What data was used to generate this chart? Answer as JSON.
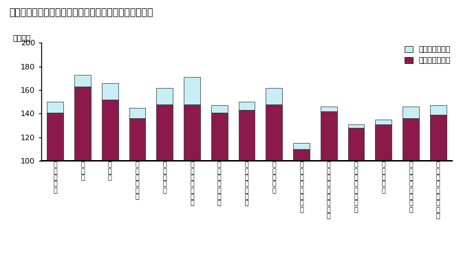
{
  "title": "図２－３　産業別１人平均労働時間数（規模５人以上）",
  "ylabel": "（時間）",
  "categories": [
    "調\n査\n産\n業\n計",
    "建\n設\n業",
    "製\n造\n業",
    "電\n気\n・\nガ\nス\n業",
    "情\n報\n通\n信\n業",
    "運\n輸\n業\n・\n郵\n便\n業",
    "卸\n売\n業\n・\n小\n売\n業",
    "金\n融\n業\n・\n保\n険\n業",
    "学\n術\n研\n究\n等",
    "宿\n泊\n業\n・\n飲\n食\n業\n等",
    "生\n活\n関\n連\nサ\nー\nビ\nス\n等",
    "教\n育\n・\n学\n習\n支\n援\n業",
    "医\n療\n・\n福\n祉",
    "複\n合\nサ\nー\nビ\nス\n事\n業",
    "そ\nの\n他\nの\nサ\nー\nビ\nス\n業"
  ],
  "scheduled_hours": [
    141,
    163,
    152,
    136,
    148,
    148,
    141,
    143,
    148,
    110,
    142,
    128,
    131,
    136,
    139
  ],
  "overtime_hours": [
    9,
    10,
    14,
    9,
    14,
    23,
    6,
    7,
    14,
    5,
    4,
    3,
    4,
    10,
    8
  ],
  "bar_color": "#8B1A4A",
  "overtime_color": "#C8EEF5",
  "ylim_min": 100,
  "ylim_max": 200,
  "yticks": [
    100,
    120,
    140,
    160,
    180,
    200
  ],
  "legend_labels": [
    "所定外労働時間",
    "所定内労働時間"
  ],
  "legend_colors": [
    "#C8EEF5",
    "#8B1A4A"
  ],
  "bar_width": 0.6
}
